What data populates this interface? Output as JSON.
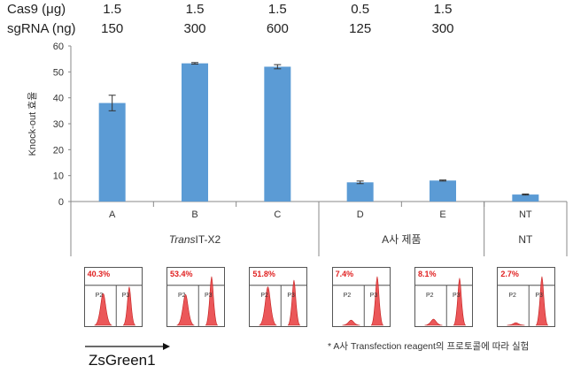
{
  "conditions": {
    "cas9_label": "Cas9 (μg)",
    "sgrna_label": "sgRNA (ng)",
    "cas9_values": [
      "1.5",
      "1.5",
      "1.5",
      "0.5",
      "1.5"
    ],
    "sgrna_values": [
      "150",
      "300",
      "600",
      "125",
      "300"
    ]
  },
  "chart_data": {
    "type": "bar",
    "categories": [
      "A",
      "B",
      "C",
      "D",
      "E",
      "NT"
    ],
    "values": [
      38,
      53.3,
      52,
      7.4,
      8.1,
      2.7
    ],
    "errors": [
      3,
      0.3,
      0.8,
      0.5,
      0.2,
      0.2
    ],
    "ylabel": "Knock-out 효율",
    "ylim": [
      0,
      60
    ],
    "yticks": [
      0,
      10,
      20,
      30,
      40,
      50,
      60
    ],
    "groups": [
      {
        "label": "TransIT-X2",
        "label_italic": "Trans",
        "label_rest": "IT-X2",
        "members": [
          "A",
          "B",
          "C"
        ]
      },
      {
        "label": "A사 제품",
        "members": [
          "D",
          "E"
        ]
      },
      {
        "label": "NT",
        "members": [
          "NT"
        ]
      }
    ],
    "bar_color": "#5b9bd5",
    "grid": false
  },
  "flow_panels": [
    {
      "percent": "40.3%",
      "gate_left": "P2",
      "gate_right": "P3"
    },
    {
      "percent": "53.4%",
      "gate_left": "P2",
      "gate_right": "P3"
    },
    {
      "percent": "51.8%",
      "gate_left": "P2",
      "gate_right": "P3"
    },
    {
      "percent": "7.4%",
      "gate_left": "P2",
      "gate_right": "P3"
    },
    {
      "percent": "8.1%",
      "gate_left": "P2",
      "gate_right": "P3"
    },
    {
      "percent": "2.7%",
      "gate_left": "P2",
      "gate_right": "P3"
    }
  ],
  "histogram_color": "#e8393c",
  "axis_label": "ZsGreen1",
  "footnote": "* A사 Transfection reagent의 프로토콜에 따라 실험"
}
